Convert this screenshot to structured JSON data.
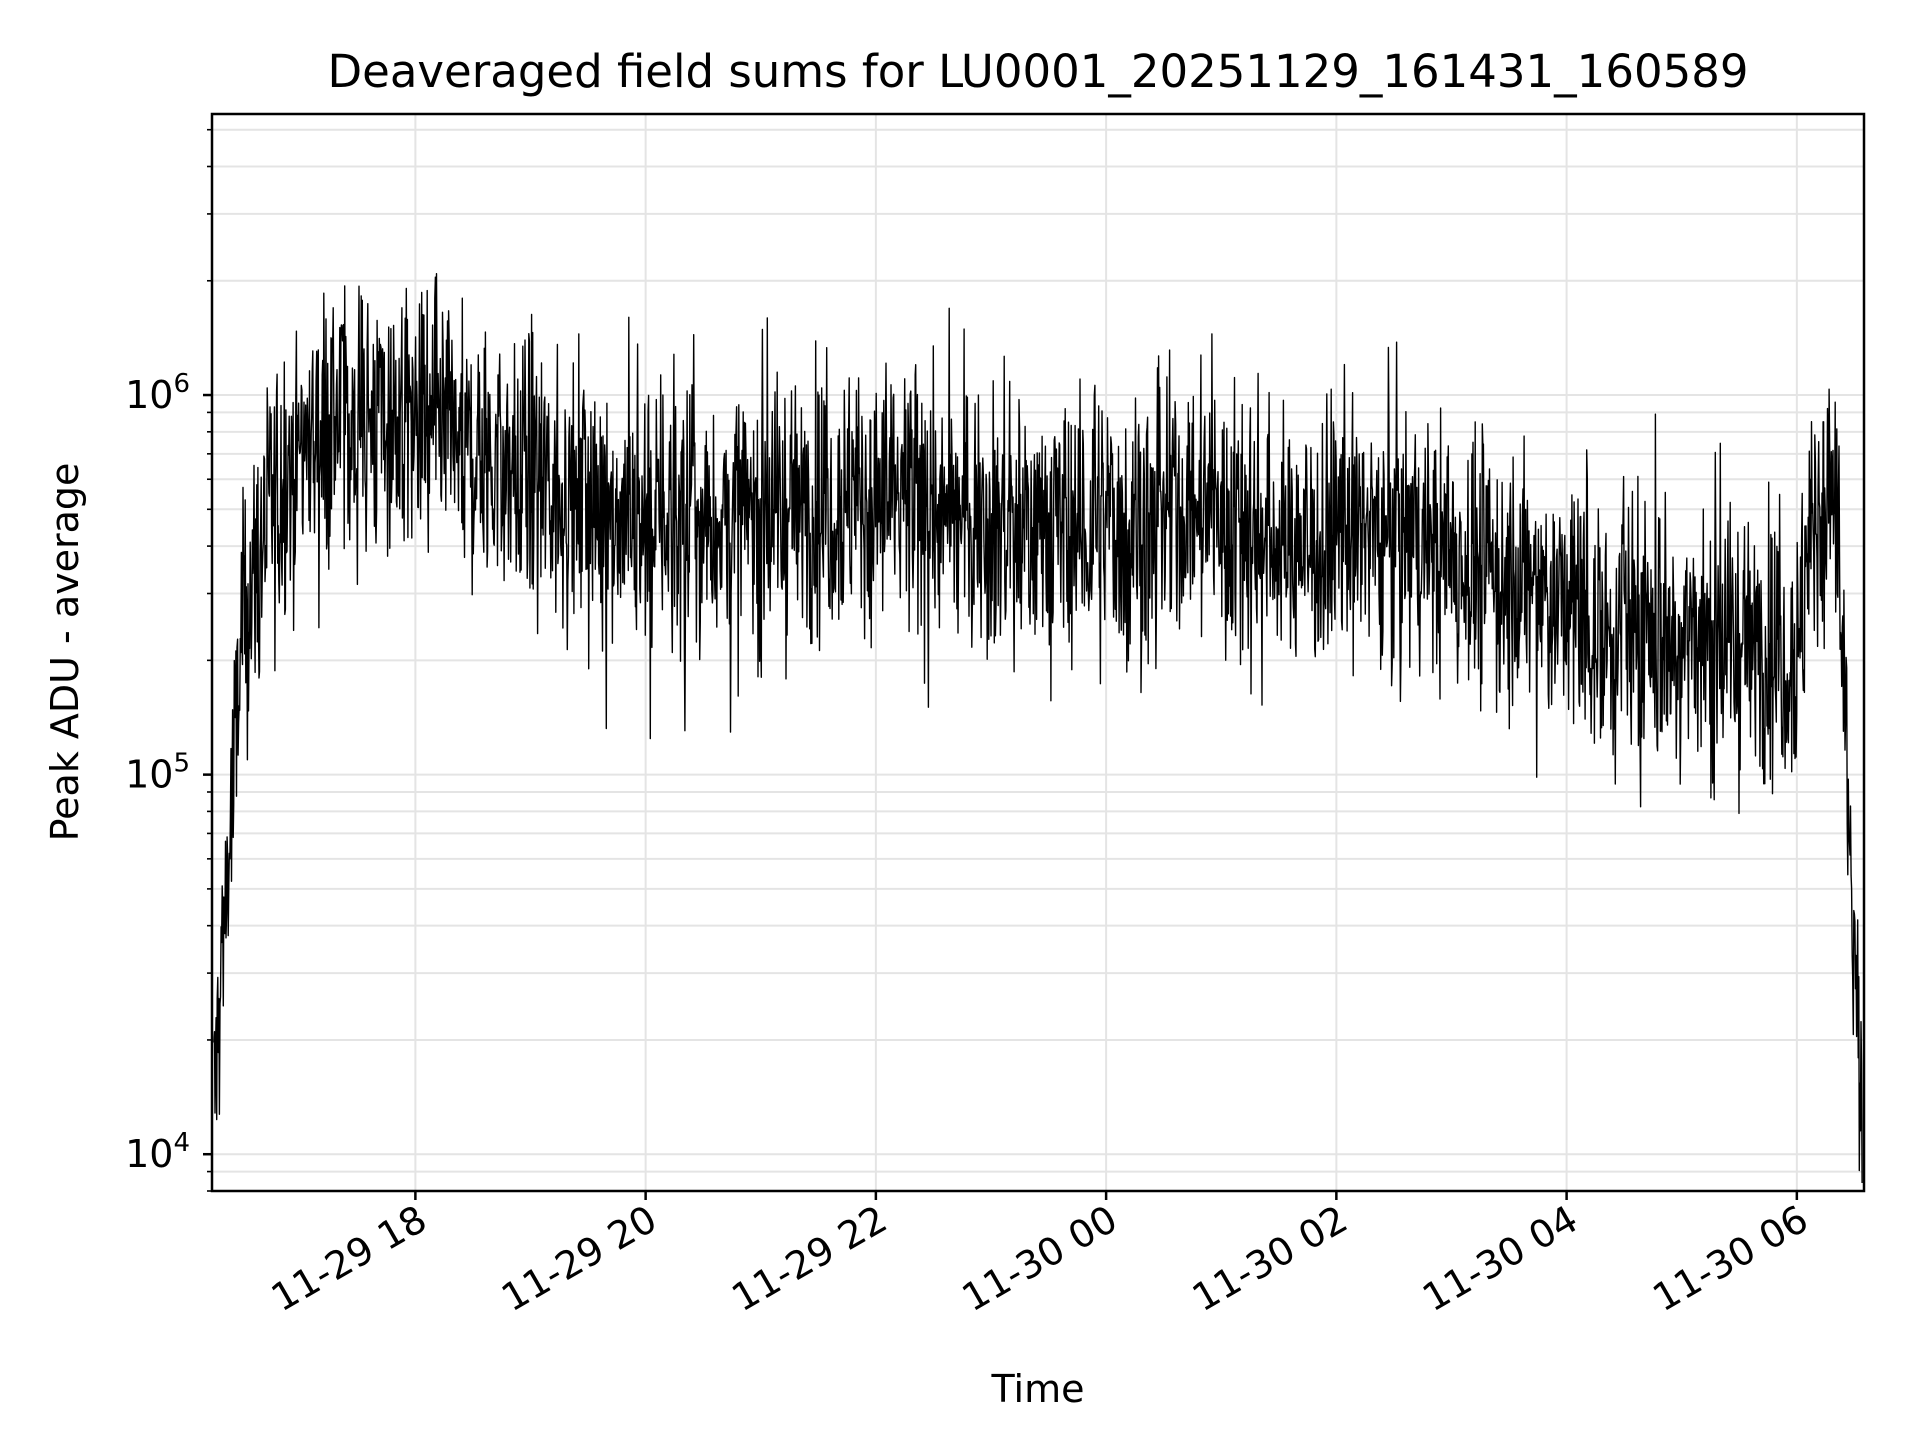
{
  "chart_data": {
    "type": "line",
    "title": "Deaveraged field sums for LU0001_20251129_161431_160589",
    "xlabel": "Time",
    "ylabel": "Peak ADU - average",
    "yscale": "log",
    "grid": true,
    "line_color": "#000000",
    "xlim": [
      "2025-11-29 16:14",
      "2025-11-30 06:35"
    ],
    "ylim": [
      8000,
      5500000
    ],
    "x_ticks": [
      {
        "value": "2025-11-29 18:00",
        "label": "11-29 18"
      },
      {
        "value": "2025-11-29 20:00",
        "label": "11-29 20"
      },
      {
        "value": "2025-11-29 22:00",
        "label": "11-29 22"
      },
      {
        "value": "2025-11-30 00:00",
        "label": "11-30 00"
      },
      {
        "value": "2025-11-30 02:00",
        "label": "11-30 02"
      },
      {
        "value": "2025-11-30 04:00",
        "label": "11-30 04"
      },
      {
        "value": "2025-11-30 06:00",
        "label": "11-30 06"
      }
    ],
    "y_ticks": [
      {
        "value": 10000,
        "base": "10",
        "exp": "4"
      },
      {
        "value": 100000,
        "base": "10",
        "exp": "5"
      },
      {
        "value": 1000000,
        "base": "10",
        "exp": "6"
      }
    ],
    "series": [
      {
        "x": [
          "2025-11-29 16:15",
          "2025-11-29 16:20",
          "2025-11-29 16:25",
          "2025-11-29 16:30",
          "2025-11-29 16:40",
          "2025-11-29 16:50",
          "2025-11-29 17:00",
          "2025-11-29 17:15",
          "2025-11-29 17:30",
          "2025-11-29 17:45",
          "2025-11-29 18:00",
          "2025-11-29 18:15",
          "2025-11-29 18:30",
          "2025-11-29 18:45",
          "2025-11-29 19:00",
          "2025-11-29 19:15",
          "2025-11-29 19:30",
          "2025-11-29 19:45",
          "2025-11-29 20:00",
          "2025-11-29 20:15",
          "2025-11-29 20:30",
          "2025-11-29 20:45",
          "2025-11-29 21:00",
          "2025-11-29 21:15",
          "2025-11-29 21:30",
          "2025-11-29 21:45",
          "2025-11-29 22:00",
          "2025-11-29 22:15",
          "2025-11-29 22:30",
          "2025-11-29 22:45",
          "2025-11-29 23:00",
          "2025-11-29 23:15",
          "2025-11-29 23:30",
          "2025-11-29 23:45",
          "2025-11-30 00:00",
          "2025-11-30 00:15",
          "2025-11-30 00:30",
          "2025-11-30 00:45",
          "2025-11-30 01:00",
          "2025-11-30 01:15",
          "2025-11-30 01:30",
          "2025-11-30 01:45",
          "2025-11-30 02:00",
          "2025-11-30 02:15",
          "2025-11-30 02:30",
          "2025-11-30 02:45",
          "2025-11-30 03:00",
          "2025-11-30 03:15",
          "2025-11-30 03:30",
          "2025-11-30 03:45",
          "2025-11-30 04:00",
          "2025-11-30 04:15",
          "2025-11-30 04:30",
          "2025-11-30 04:45",
          "2025-11-30 05:00",
          "2025-11-30 05:15",
          "2025-11-30 05:30",
          "2025-11-30 05:45",
          "2025-11-30 06:00",
          "2025-11-30 06:10",
          "2025-11-30 06:20",
          "2025-11-30 06:30",
          "2025-11-30 06:34"
        ],
        "y": [
          13000,
          40000,
          90000,
          250000,
          400000,
          600000,
          750000,
          850000,
          900000,
          850000,
          800000,
          750000,
          700000,
          650000,
          600000,
          550000,
          520000,
          500000,
          480000,
          470000,
          460000,
          470000,
          480000,
          500000,
          520000,
          540000,
          520000,
          500000,
          480000,
          470000,
          460000,
          450000,
          440000,
          430000,
          440000,
          460000,
          480000,
          500000,
          470000,
          440000,
          420000,
          400000,
          420000,
          450000,
          430000,
          400000,
          380000,
          350000,
          320000,
          300000,
          280000,
          250000,
          240000,
          230000,
          230000,
          230000,
          220000,
          220000,
          210000,
          500000,
          550000,
          30000,
          10000
        ],
        "noise_dex": 0.3
      }
    ]
  }
}
